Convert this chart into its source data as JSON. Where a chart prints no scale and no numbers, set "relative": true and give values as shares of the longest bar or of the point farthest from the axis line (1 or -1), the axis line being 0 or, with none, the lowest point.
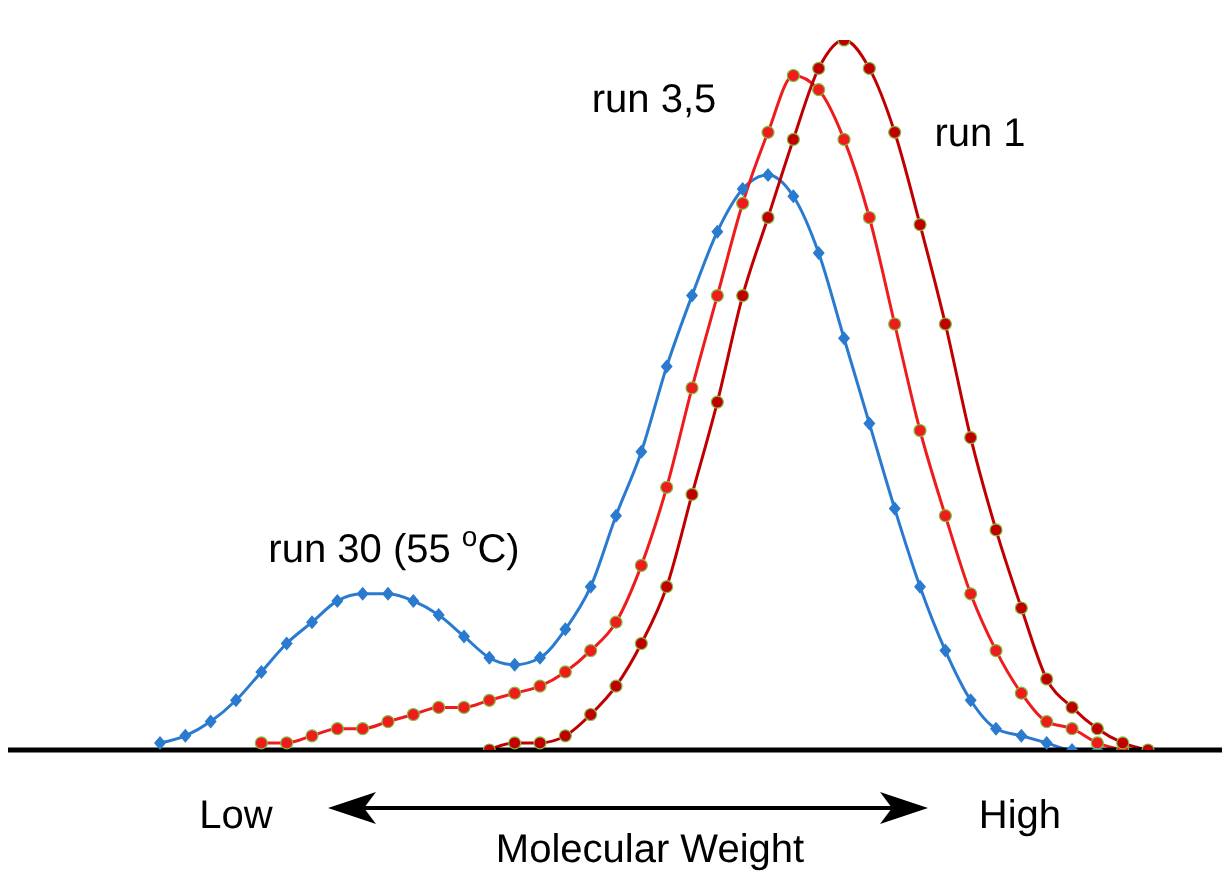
{
  "chart_data": {
    "type": "line",
    "relative": true,
    "xlabel": "Molecular Weight",
    "annotations": [
      "Low",
      "High"
    ],
    "categories": [
      null,
      null,
      null,
      null,
      null,
      null,
      null,
      null,
      null,
      null,
      null,
      null,
      null,
      null,
      null,
      null,
      null,
      null,
      null,
      null,
      null,
      null,
      null,
      null,
      null,
      null,
      null,
      null,
      null,
      null,
      null,
      null,
      null,
      null,
      null,
      null,
      null,
      null,
      null,
      null,
      null,
      null,
      null,
      null,
      null,
      null,
      null,
      null
    ],
    "series": [
      {
        "name": "run 30 (55 $^{o}$C)",
        "color": "#2a7bd0",
        "marker": "diamond",
        "values": [
          null,
          null,
          null,
          null,
          null,
          null,
          0.01,
          0.02,
          0.04,
          0.07,
          0.11,
          0.15,
          0.18,
          0.21,
          0.22,
          0.22,
          0.21,
          0.19,
          0.16,
          0.13,
          0.12,
          0.13,
          0.17,
          0.23,
          0.33,
          0.42,
          0.54,
          0.64,
          0.73,
          0.79,
          0.81,
          0.78,
          0.7,
          0.58,
          0.46,
          0.34,
          0.23,
          0.14,
          0.07,
          0.03,
          0.02,
          0.01,
          0.0,
          0,
          null,
          null,
          null,
          null
        ]
      },
      {
        "name": "run 3,5",
        "color": "#ee1c1c",
        "marker": "circle",
        "values": [
          null,
          null,
          null,
          null,
          null,
          null,
          null,
          null,
          null,
          null,
          0.01,
          0.01,
          0.02,
          0.03,
          0.03,
          0.04,
          0.05,
          0.06,
          0.06,
          0.07,
          0.08,
          0.09,
          0.11,
          0.14,
          0.18,
          0.26,
          0.37,
          0.51,
          0.64,
          0.77,
          0.87,
          0.95,
          0.93,
          0.86,
          0.75,
          0.6,
          0.45,
          0.33,
          0.22,
          0.14,
          0.08,
          0.04,
          0.03,
          0.01,
          0.0,
          null,
          null,
          null
        ]
      },
      {
        "name": "run 1",
        "color": "#c00000",
        "marker": "circle",
        "values": [
          null,
          null,
          null,
          null,
          null,
          null,
          null,
          null,
          null,
          null,
          null,
          null,
          null,
          null,
          null,
          null,
          null,
          null,
          null,
          0.0,
          0.01,
          0.01,
          0.02,
          0.05,
          0.09,
          0.15,
          0.23,
          0.36,
          0.49,
          0.64,
          0.75,
          0.86,
          0.96,
          1,
          0.96,
          0.87,
          0.74,
          0.6,
          0.44,
          0.31,
          0.2,
          0.1,
          0.06,
          0.03,
          0.01,
          0.0,
          null,
          null
        ]
      }
    ]
  }
}
